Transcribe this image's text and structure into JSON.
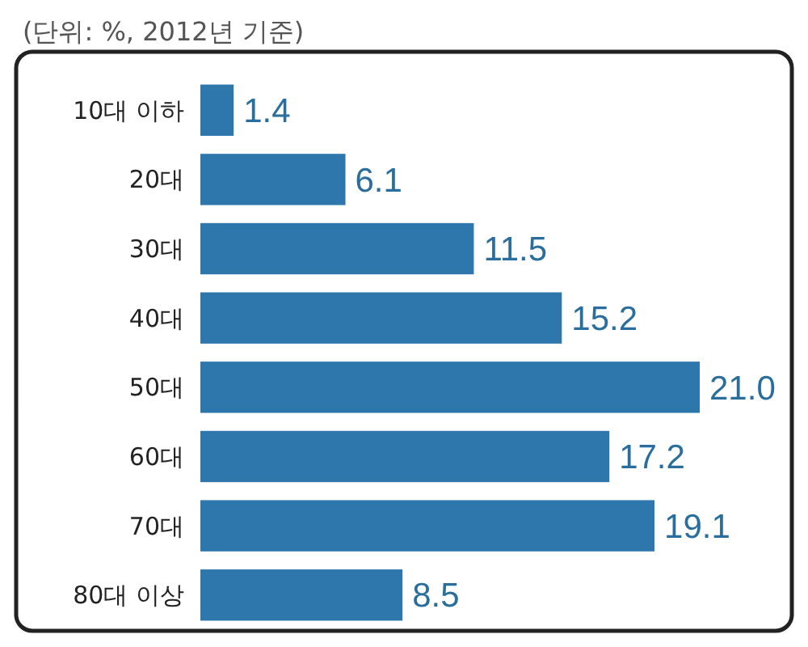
{
  "chart_data": {
    "type": "bar",
    "orientation": "horizontal",
    "subtitle": "(단위: %, 2012년 기준)",
    "categories": [
      "10대 이하",
      "20대",
      "30대",
      "40대",
      "50대",
      "60대",
      "70대",
      "80대 이상"
    ],
    "values": [
      1.4,
      6.1,
      11.5,
      15.2,
      21.0,
      17.2,
      19.1,
      8.5
    ],
    "color": "#2e77ad",
    "data_labels": true,
    "value_labels": [
      "1.4",
      "6.1",
      "11.5",
      "15.2",
      "21.0",
      "17.2",
      "19.1",
      "8.5"
    ]
  }
}
